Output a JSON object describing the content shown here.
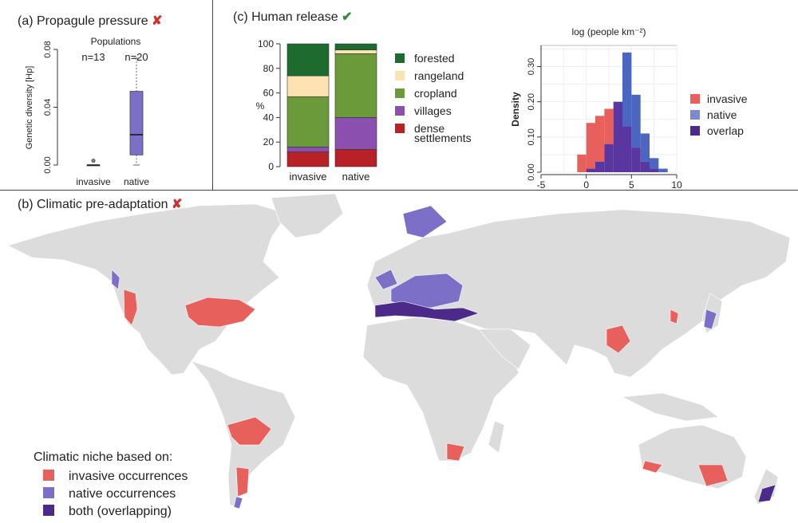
{
  "panels": {
    "a": {
      "title": "(a) Propagule pressure",
      "mark": "✘"
    },
    "b": {
      "title": "(b) Climatic pre-adaptation",
      "mark": "✘"
    },
    "c": {
      "title": "(c) Human release",
      "mark": "✔"
    }
  },
  "colors": {
    "invasive": "#e8605c",
    "native": "#7b6fc8",
    "overlap": "#4b2a8a",
    "land": "#dcdcdc",
    "forested": "#1d6b2f",
    "rangeland": "#fde3b1",
    "cropland": "#6a9a3a",
    "villages": "#8b4fb0",
    "dense": "#b82226"
  },
  "chart_data": [
    {
      "type": "box",
      "title": "Populations",
      "ylabel": "Genetic diversity [Hp]",
      "ylim": [
        0,
        0.08
      ],
      "yticks": [
        "0.00",
        "0.04",
        "0.08"
      ],
      "groups": [
        {
          "name": "invasive",
          "n_label": "n=13",
          "min": 0.0,
          "q1": 0.0,
          "median": 0.0,
          "q3": 0.0,
          "max": 0.0,
          "outliers": [
            0.003
          ]
        },
        {
          "name": "native",
          "n_label": "n=20",
          "min": 0.0,
          "q1": 0.007,
          "median": 0.021,
          "q3": 0.051,
          "max": 0.074,
          "outliers": []
        }
      ]
    },
    {
      "type": "bar",
      "stacked": true,
      "ylabel": "%",
      "ylim": [
        0,
        100
      ],
      "yticks": [
        "0",
        "20",
        "40",
        "60",
        "80",
        "100"
      ],
      "categories": [
        "invasive",
        "native"
      ],
      "series": [
        {
          "name": "dense settlements",
          "key": "dense",
          "values": [
            12,
            14
          ]
        },
        {
          "name": "villages",
          "key": "villages",
          "values": [
            4,
            26
          ]
        },
        {
          "name": "cropland",
          "key": "cropland",
          "values": [
            41,
            52
          ]
        },
        {
          "name": "rangeland",
          "key": "rangeland",
          "values": [
            17,
            3
          ]
        },
        {
          "name": "forested",
          "key": "forested",
          "values": [
            26,
            5
          ]
        }
      ],
      "legend": [
        "forested",
        "rangeland",
        "cropland",
        "villages",
        "dense",
        "settlements"
      ]
    },
    {
      "type": "histogram",
      "title": "log (people km⁻²)",
      "ylabel": "Density",
      "xlim": [
        -5,
        10
      ],
      "ylim": [
        0,
        0.36
      ],
      "xticks": [
        "-5",
        "0",
        "5",
        "10"
      ],
      "yticks": [
        "0.00",
        "0.10",
        "0.20",
        "0.30"
      ],
      "bin_edges": [
        -1,
        0,
        1,
        2,
        3,
        4,
        5,
        6,
        7,
        8,
        9
      ],
      "invasive": [
        0.05,
        0.14,
        0.16,
        0.18,
        0.2,
        0.13,
        0.07,
        0.03,
        0.01,
        0.0
      ],
      "native": [
        0.0,
        0.01,
        0.03,
        0.08,
        0.2,
        0.34,
        0.22,
        0.11,
        0.04,
        0.01
      ],
      "legend": [
        "invasive",
        "native",
        "overlap"
      ]
    }
  ],
  "map": {
    "legend_title": "Climatic niche based on:",
    "legend": [
      {
        "label": "invasive occurrences",
        "key": "invasive"
      },
      {
        "label": "native occurrences",
        "key": "native"
      },
      {
        "label": "both (overlapping)",
        "key": "overlap"
      }
    ]
  }
}
